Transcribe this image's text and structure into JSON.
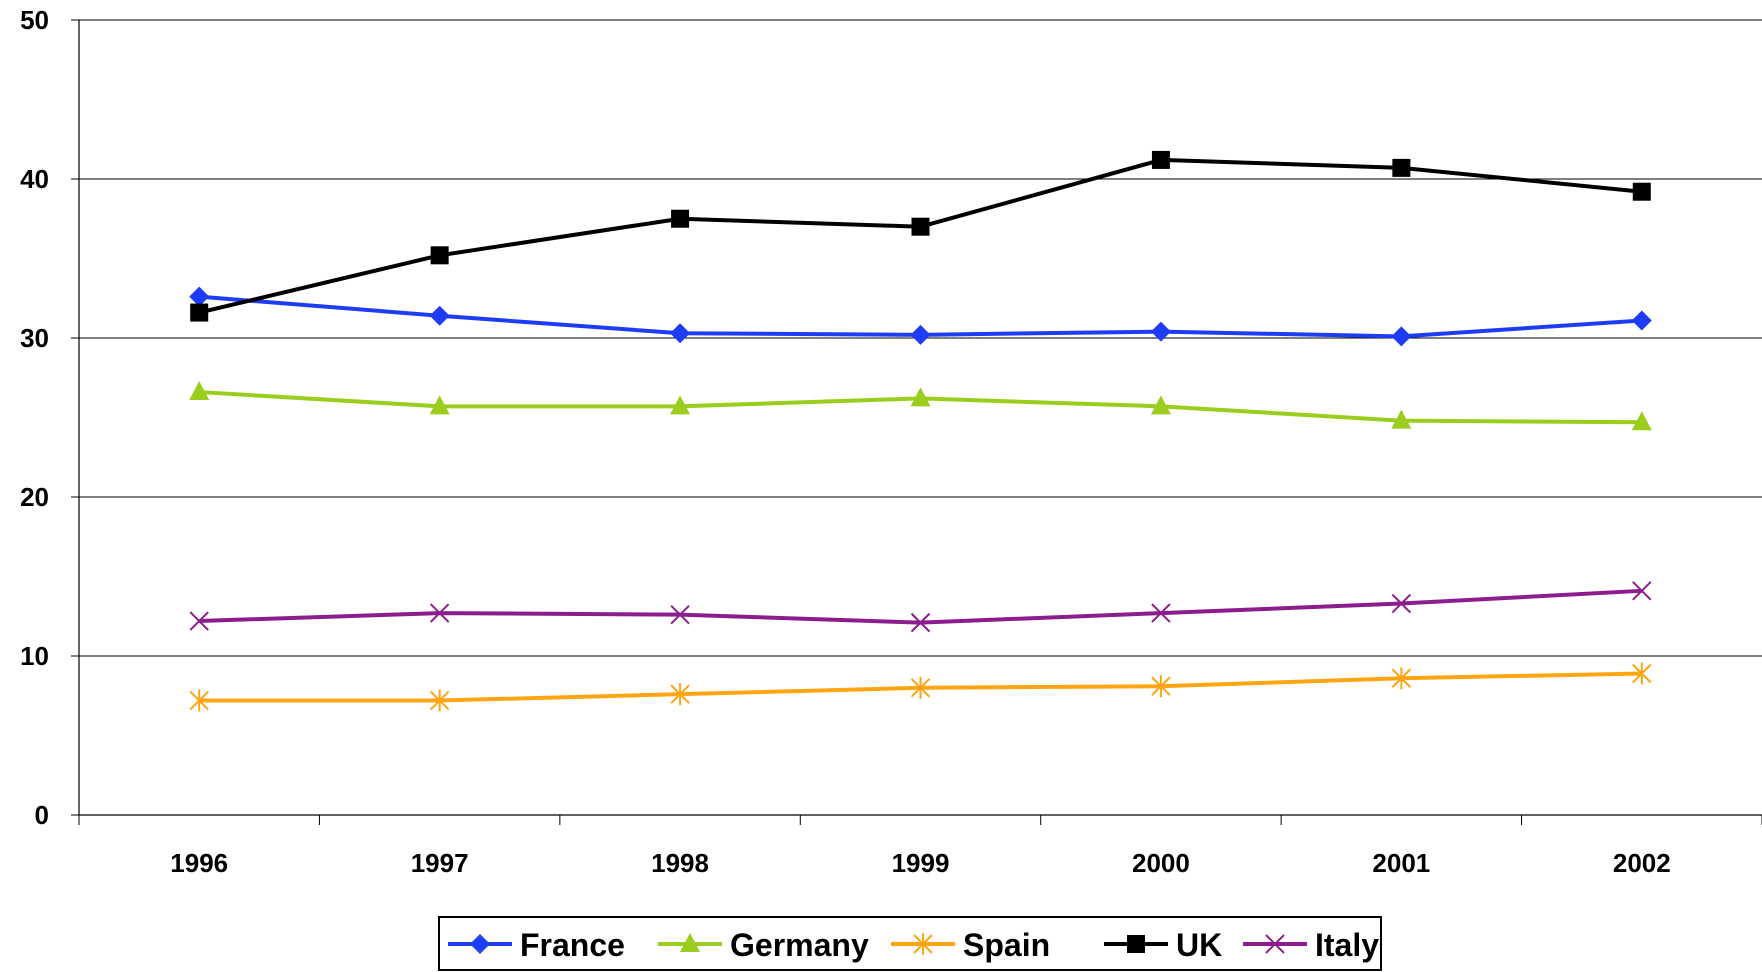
{
  "chart_data": {
    "type": "line",
    "title": "",
    "xlabel": "",
    "ylabel": "",
    "categories": [
      "1996",
      "1997",
      "1998",
      "1999",
      "2000",
      "2001",
      "2002"
    ],
    "ylim": [
      0,
      50
    ],
    "yticks": [
      "0",
      "10",
      "20",
      "30",
      "40",
      "50"
    ],
    "grid": true,
    "legend_position": "bottom",
    "series": [
      {
        "name": "France",
        "color": "#1f3cf5",
        "marker": "diamond",
        "values": [
          32.6,
          31.4,
          30.3,
          30.2,
          30.4,
          30.1,
          31.1
        ]
      },
      {
        "name": "Germany",
        "color": "#9acd1e",
        "marker": "triangle",
        "values": [
          26.6,
          25.7,
          25.7,
          26.2,
          25.7,
          24.8,
          24.7
        ]
      },
      {
        "name": "Spain",
        "color": "#ffa514",
        "marker": "star",
        "values": [
          7.2,
          7.2,
          7.6,
          8.0,
          8.1,
          8.6,
          8.9
        ]
      },
      {
        "name": "UK",
        "color": "#000000",
        "marker": "square",
        "values": [
          31.6,
          35.2,
          37.5,
          37.0,
          41.2,
          40.7,
          39.2
        ]
      },
      {
        "name": "Italy",
        "color": "#8b1e8c",
        "marker": "x",
        "values": [
          12.2,
          12.7,
          12.6,
          12.1,
          12.7,
          13.3,
          14.1
        ]
      }
    ]
  }
}
